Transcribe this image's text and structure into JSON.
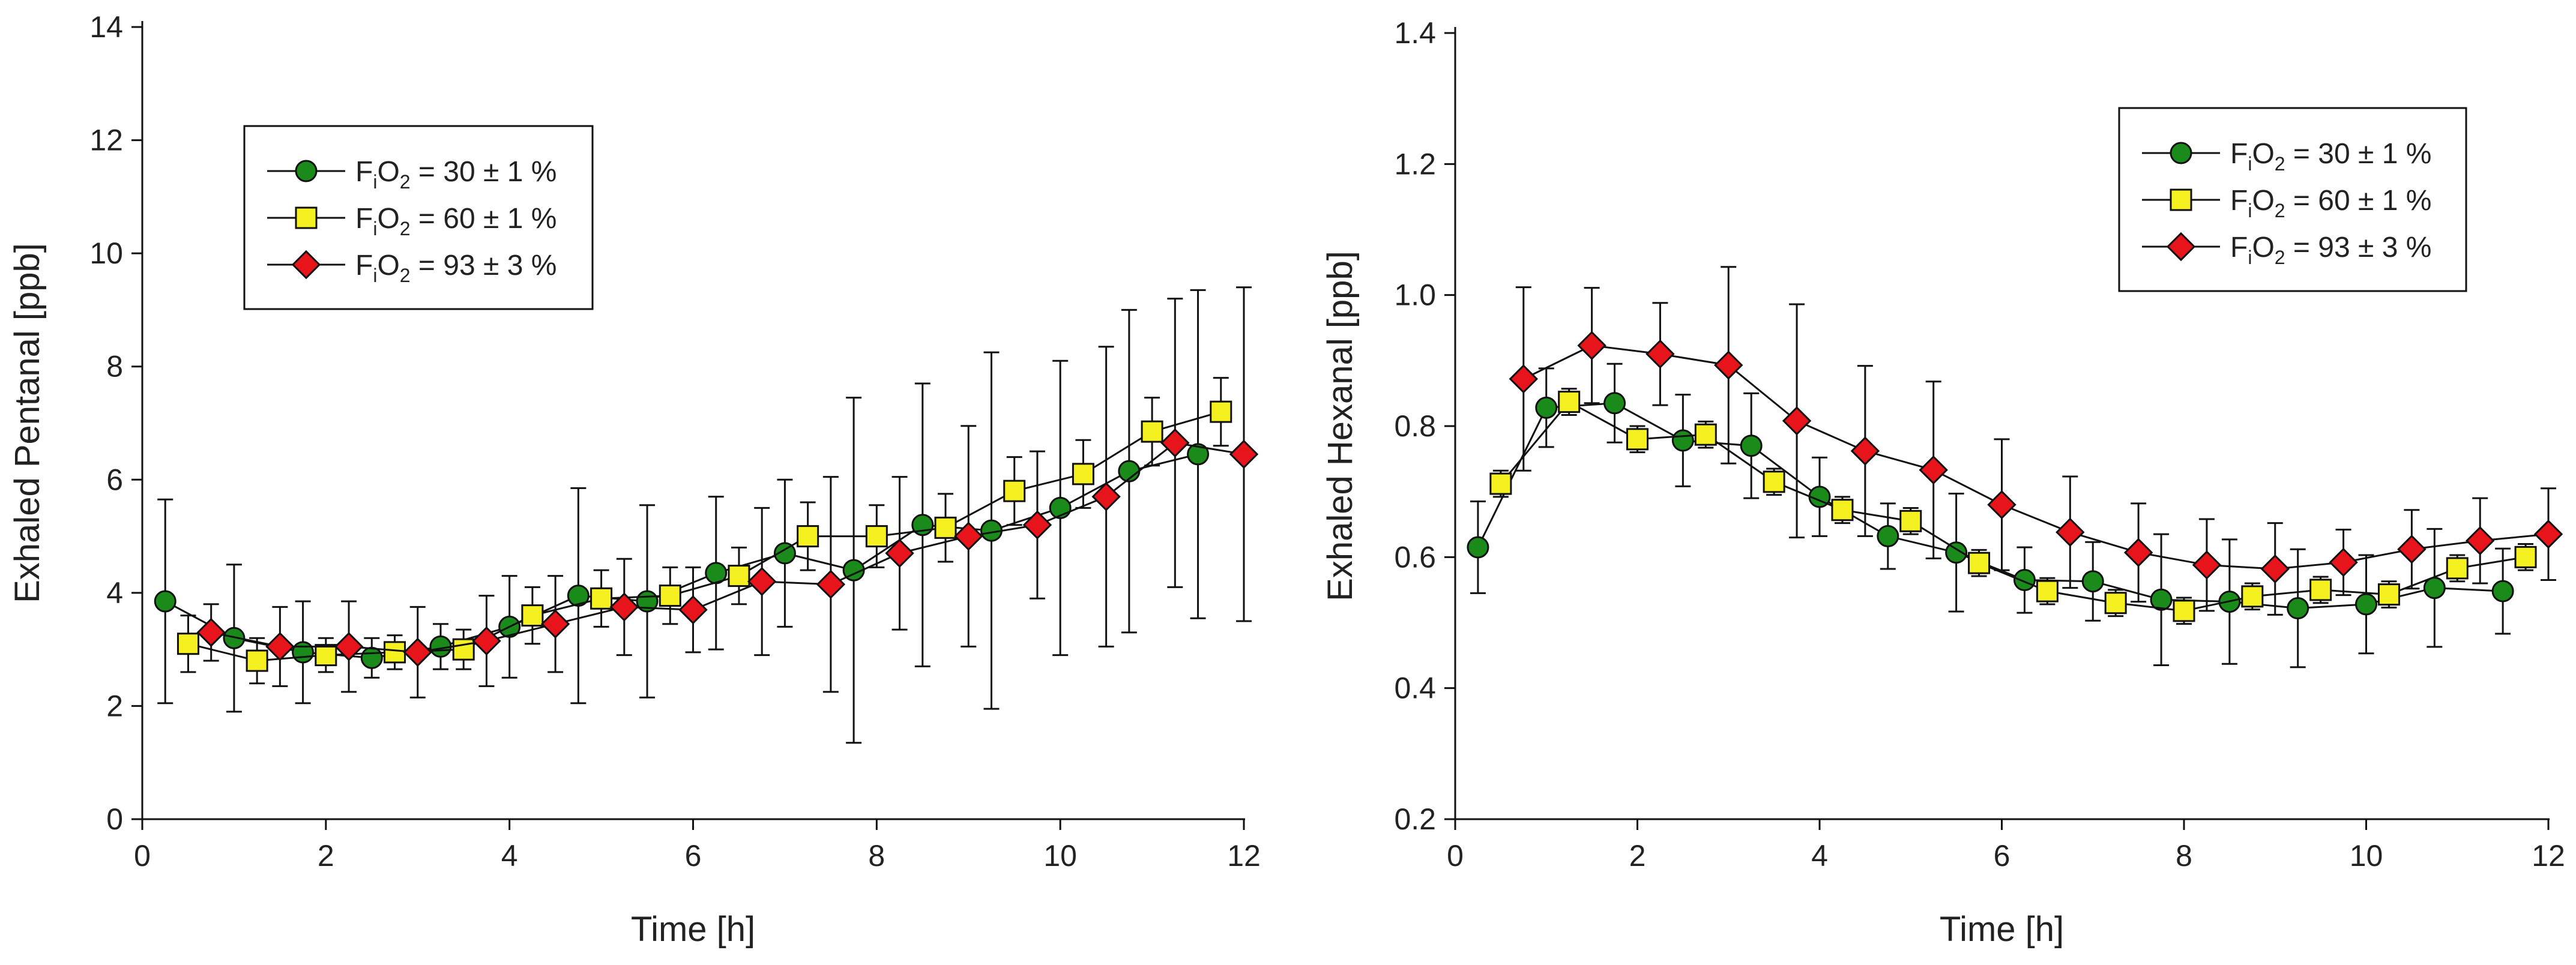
{
  "chart_data": [
    {
      "type": "line",
      "title": "",
      "xlabel": "Time [h]",
      "ylabel": "Exhaled Pentanal [ppb]",
      "xlim": [
        0,
        12
      ],
      "ylim": [
        0,
        14
      ],
      "xticks": [
        0,
        2,
        4,
        6,
        8,
        10,
        12
      ],
      "xtick_labels": [
        "0",
        "2",
        "4",
        "6",
        "8",
        "10",
        "12"
      ],
      "yticks": [
        0,
        2,
        4,
        6,
        8,
        10,
        12,
        14
      ],
      "ytick_labels": [
        "0",
        "2",
        "4",
        "6",
        "8",
        "10",
        "12",
        "14"
      ],
      "legend_position": "upper-left",
      "series": [
        {
          "name": "FiO2 = 30 ± 1 %",
          "legend_parts": [
            "F",
            "i",
            "O",
            "2",
            " = 30 ± 1 %"
          ],
          "marker": "circle",
          "color": "#1a8a1a",
          "x": [
            0.25,
            1.0,
            1.75,
            2.5,
            3.25,
            4.0,
            4.75,
            5.5,
            6.25,
            7.0,
            7.75,
            8.5,
            9.25,
            10.0,
            10.75,
            11.5
          ],
          "y": [
            3.85,
            3.2,
            2.95,
            2.85,
            3.05,
            3.4,
            3.95,
            3.85,
            4.35,
            4.7,
            4.4,
            5.2,
            5.1,
            5.5,
            6.15,
            6.45
          ],
          "err": [
            1.8,
            1.3,
            0.9,
            0.35,
            0.4,
            0.9,
            1.9,
            1.7,
            1.35,
            1.3,
            3.05,
            2.5,
            3.15,
            2.6,
            2.85,
            2.9
          ]
        },
        {
          "name": "FiO2 = 60 ± 1 %",
          "legend_parts": [
            "F",
            "i",
            "O",
            "2",
            " = 60 ± 1 %"
          ],
          "marker": "square",
          "color": "#f5f020",
          "x": [
            0.5,
            1.25,
            2.0,
            2.75,
            3.5,
            4.25,
            5.0,
            5.75,
            6.5,
            7.25,
            8.0,
            8.75,
            9.5,
            10.25,
            11.0,
            11.75
          ],
          "y": [
            3.1,
            2.8,
            2.9,
            2.95,
            3.0,
            3.6,
            3.9,
            3.95,
            4.3,
            5.0,
            5.0,
            5.15,
            5.8,
            6.1,
            6.85,
            7.2
          ],
          "err": [
            0.5,
            0.4,
            0.3,
            0.3,
            0.35,
            0.5,
            0.5,
            0.5,
            0.5,
            0.6,
            0.55,
            0.6,
            0.6,
            0.6,
            0.6,
            0.6
          ]
        },
        {
          "name": "FiO2 = 93 ± 3 %",
          "legend_parts": [
            "F",
            "i",
            "O",
            "2",
            " = 93 ± 3 %"
          ],
          "marker": "diamond",
          "color": "#e8141b",
          "x": [
            0.75,
            1.5,
            2.25,
            3.0,
            3.75,
            4.5,
            5.25,
            6.0,
            6.75,
            7.5,
            8.25,
            9.0,
            9.75,
            10.5,
            11.25,
            12.0
          ],
          "y": [
            3.3,
            3.05,
            3.05,
            2.95,
            3.15,
            3.45,
            3.75,
            3.7,
            4.2,
            4.15,
            4.7,
            5.0,
            5.2,
            5.7,
            6.65,
            6.45
          ],
          "err": [
            0.5,
            0.7,
            0.8,
            0.8,
            0.8,
            0.85,
            0.85,
            0.75,
            1.3,
            1.9,
            1.35,
            1.95,
            1.3,
            2.65,
            2.55,
            2.95
          ]
        }
      ]
    },
    {
      "type": "line",
      "title": "",
      "xlabel": "Time [h]",
      "ylabel": "Exhaled Hexanal [ppb]",
      "xlim": [
        0,
        12
      ],
      "ylim": [
        0.2,
        1.4
      ],
      "xticks": [
        0,
        2,
        4,
        6,
        8,
        10,
        12
      ],
      "xtick_labels": [
        "0",
        "2",
        "4",
        "6",
        "8",
        "10",
        "12"
      ],
      "yticks": [
        0.2,
        0.4,
        0.6,
        0.8,
        1.0,
        1.2,
        1.4
      ],
      "ytick_labels": [
        "0.2",
        "0.4",
        "0.6",
        "0.8",
        "1.0",
        "1.2",
        "1.4"
      ],
      "legend_position": "upper-right",
      "series": [
        {
          "name": "FiO2 = 30 ± 1 %",
          "legend_parts": [
            "F",
            "i",
            "O",
            "2",
            " = 30 ± 1 %"
          ],
          "marker": "circle",
          "color": "#1a8a1a",
          "x": [
            0.25,
            1.0,
            1.75,
            2.5,
            3.25,
            4.0,
            4.75,
            5.5,
            6.25,
            7.0,
            7.75,
            8.5,
            9.25,
            10.0,
            10.75,
            11.5
          ],
          "y": [
            0.615,
            0.828,
            0.835,
            0.778,
            0.77,
            0.692,
            0.632,
            0.607,
            0.565,
            0.563,
            0.535,
            0.532,
            0.522,
            0.528,
            0.553,
            0.548
          ],
          "err": [
            0.07,
            0.06,
            0.06,
            0.07,
            0.08,
            0.06,
            0.05,
            0.09,
            0.05,
            0.06,
            0.1,
            0.095,
            0.09,
            0.075,
            0.09,
            0.065
          ]
        },
        {
          "name": "FiO2 = 60 ± 1 %",
          "legend_parts": [
            "F",
            "i",
            "O",
            "2",
            " = 60 ± 1 %"
          ],
          "marker": "square",
          "color": "#f5f020",
          "x": [
            0.5,
            1.25,
            2.0,
            2.75,
            3.5,
            4.25,
            5.0,
            5.75,
            6.5,
            7.25,
            8.0,
            8.75,
            9.5,
            10.25,
            11.0,
            11.75
          ],
          "y": [
            0.712,
            0.837,
            0.78,
            0.787,
            0.715,
            0.672,
            0.655,
            0.591,
            0.548,
            0.53,
            0.518,
            0.54,
            0.55,
            0.543,
            0.583,
            0.6
          ],
          "err": [
            0.02,
            0.02,
            0.02,
            0.02,
            0.02,
            0.02,
            0.02,
            0.02,
            0.02,
            0.02,
            0.02,
            0.02,
            0.02,
            0.02,
            0.02,
            0.02
          ]
        },
        {
          "name": "FiO2 = 93 ± 3 %",
          "legend_parts": [
            "F",
            "i",
            "O",
            "2",
            " = 93 ± 3 %"
          ],
          "marker": "diamond",
          "color": "#e8141b",
          "x": [
            0.75,
            1.5,
            2.25,
            3.0,
            3.75,
            4.5,
            5.25,
            6.0,
            6.75,
            7.5,
            8.25,
            9.0,
            9.75,
            10.5,
            11.25,
            12.0
          ],
          "y": [
            0.872,
            0.923,
            0.91,
            0.893,
            0.808,
            0.762,
            0.733,
            0.68,
            0.638,
            0.607,
            0.588,
            0.582,
            0.592,
            0.612,
            0.625,
            0.635
          ],
          "err": [
            0.14,
            0.088,
            0.078,
            0.15,
            0.178,
            0.13,
            0.135,
            0.1,
            0.085,
            0.075,
            0.07,
            0.07,
            0.05,
            0.06,
            0.065,
            0.07
          ]
        }
      ]
    }
  ]
}
